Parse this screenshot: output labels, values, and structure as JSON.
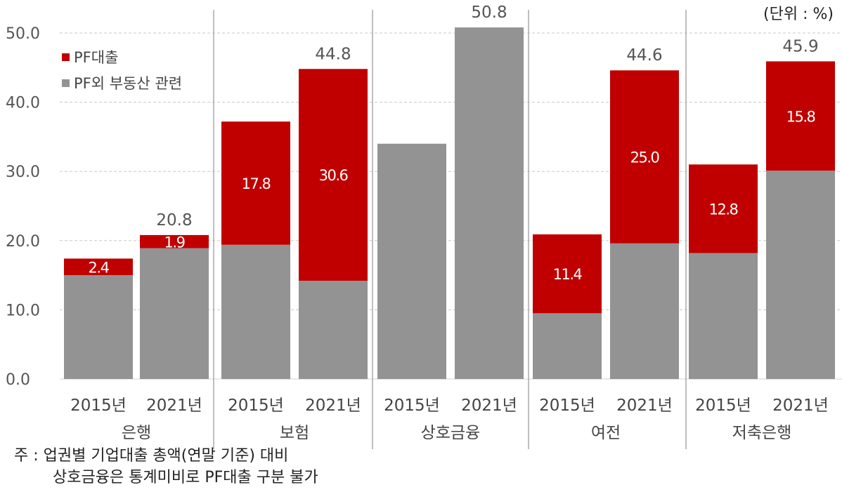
{
  "unit_label": "(단위 : %)",
  "note": {
    "line1": "주 : 업권별 기업대출 총액(연말 기준) 대비",
    "line2": "상호금융은 통계미비로 PF대출 구분 불가"
  },
  "colors": {
    "pf": "#C00000",
    "other": "#939393",
    "grid": "#c8c8c8",
    "divider": "#aaaaaa"
  },
  "chart_data": {
    "type": "bar",
    "stacked": true,
    "ylim": [
      0,
      50
    ],
    "yticks": [
      "0.0",
      "10.0",
      "20.0",
      "30.0",
      "40.0",
      "50.0"
    ],
    "grid": true,
    "legend_position": "top-left",
    "legend": [
      "PF대출",
      "PF외 부동산 관련"
    ],
    "groups": [
      {
        "name": "은행",
        "bars": [
          {
            "year": "2015년",
            "other": 15.0,
            "pf": 2.4,
            "pf_label": "2.4",
            "total": null
          },
          {
            "year": "2021년",
            "other": 18.9,
            "pf": 1.9,
            "pf_label": "1.9",
            "total": "20.8"
          }
        ]
      },
      {
        "name": "보험",
        "bars": [
          {
            "year": "2015년",
            "other": 19.4,
            "pf": 17.8,
            "pf_label": "17.8",
            "total": null
          },
          {
            "year": "2021년",
            "other": 14.2,
            "pf": 30.6,
            "pf_label": "30.6",
            "total": "44.8"
          }
        ]
      },
      {
        "name": "상호금융",
        "bars": [
          {
            "year": "2015년",
            "other": 34.0,
            "pf": 0,
            "pf_label": null,
            "total": null
          },
          {
            "year": "2021년",
            "other": 50.8,
            "pf": 0,
            "pf_label": null,
            "total": "50.8"
          }
        ]
      },
      {
        "name": "여전",
        "bars": [
          {
            "year": "2015년",
            "other": 9.5,
            "pf": 11.4,
            "pf_label": "11.4",
            "total": null
          },
          {
            "year": "2021년",
            "other": 19.6,
            "pf": 25.0,
            "pf_label": "25.0",
            "total": "44.6"
          }
        ]
      },
      {
        "name": "저축은행",
        "bars": [
          {
            "year": "2015년",
            "other": 18.2,
            "pf": 12.8,
            "pf_label": "12.8",
            "total": null
          },
          {
            "year": "2021년",
            "other": 30.1,
            "pf": 15.8,
            "pf_label": "15.8",
            "total": "45.9"
          }
        ]
      }
    ]
  }
}
